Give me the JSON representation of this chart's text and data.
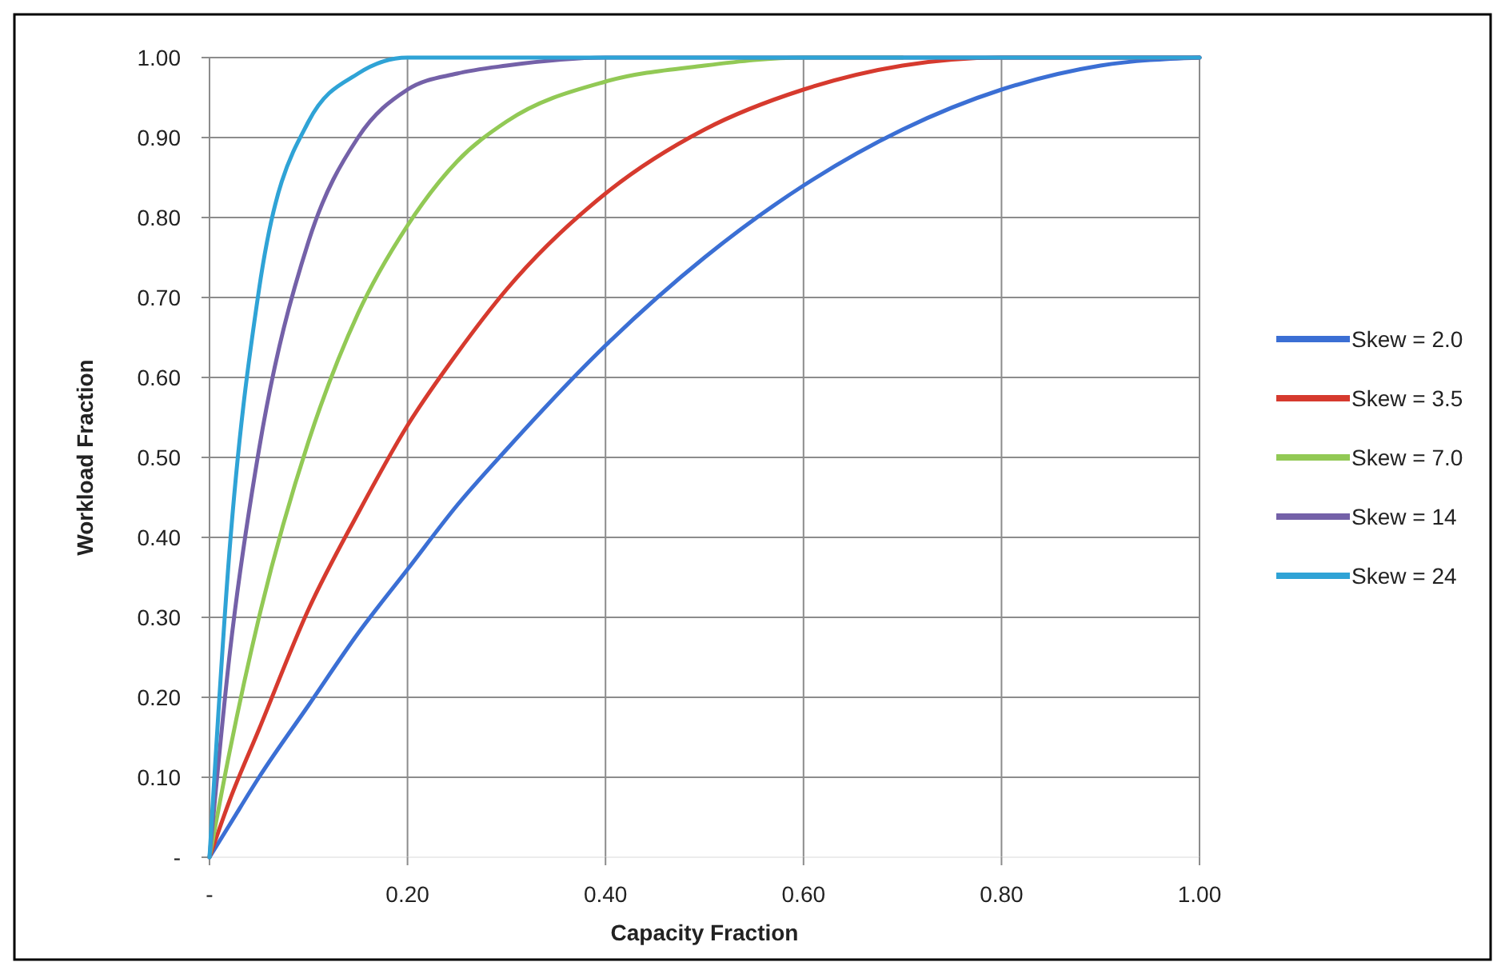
{
  "chart_data": {
    "type": "line",
    "xlabel": "Capacity Fraction",
    "ylabel": "Workload Fraction",
    "x": [
      0,
      0.02,
      0.05,
      0.1,
      0.15,
      0.2,
      0.25,
      0.3,
      0.4,
      0.5,
      0.6,
      0.7,
      0.8,
      0.9,
      1.0
    ],
    "series": [
      {
        "name": "Skew = 2.0",
        "color": "#3b6fd4",
        "values": [
          0,
          0.04,
          0.1,
          0.19,
          0.28,
          0.36,
          0.44,
          0.51,
          0.64,
          0.75,
          0.84,
          0.91,
          0.96,
          0.99,
          1.0
        ]
      },
      {
        "name": "Skew = 3.5",
        "color": "#d63a2e",
        "values": [
          0,
          0.07,
          0.16,
          0.31,
          0.43,
          0.54,
          0.63,
          0.71,
          0.83,
          0.91,
          0.96,
          0.99,
          1.0,
          1.0,
          1.0
        ]
      },
      {
        "name": "Skew = 7.0",
        "color": "#92c955",
        "values": [
          0,
          0.13,
          0.3,
          0.52,
          0.68,
          0.79,
          0.87,
          0.92,
          0.97,
          0.99,
          1.0,
          1.0,
          null,
          null,
          null
        ]
      },
      {
        "name": "Skew = 14",
        "color": "#7461a8",
        "values": [
          0,
          0.25,
          0.51,
          0.77,
          0.9,
          0.96,
          0.98,
          0.99,
          1.0,
          1.0,
          1.0,
          1.0,
          1.0,
          1.0,
          1.0
        ]
      },
      {
        "name": "Skew = 24",
        "color": "#2fa3d6",
        "values": [
          0,
          0.38,
          0.71,
          0.92,
          0.98,
          1.0,
          1.0,
          1.0,
          1.0,
          1.0,
          1.0,
          1.0,
          1.0,
          1.0,
          1.0
        ]
      }
    ],
    "xlim": [
      0,
      1
    ],
    "xticks": [
      {
        "value": 0,
        "label": "-"
      },
      {
        "value": 0.2,
        "label": "0.20"
      },
      {
        "value": 0.4,
        "label": "0.40"
      },
      {
        "value": 0.6,
        "label": "0.60"
      },
      {
        "value": 0.8,
        "label": "0.80"
      },
      {
        "value": 1,
        "label": "1.00"
      }
    ],
    "ylim": [
      0,
      1
    ],
    "yticks": [
      {
        "value": 0,
        "label": "-"
      },
      {
        "value": 0.1,
        "label": "0.10"
      },
      {
        "value": 0.2,
        "label": "0.20"
      },
      {
        "value": 0.3,
        "label": "0.30"
      },
      {
        "value": 0.4,
        "label": "0.40"
      },
      {
        "value": 0.5,
        "label": "0.50"
      },
      {
        "value": 0.6,
        "label": "0.60"
      },
      {
        "value": 0.7,
        "label": "0.70"
      },
      {
        "value": 0.8,
        "label": "0.80"
      },
      {
        "value": 0.9,
        "label": "0.90"
      },
      {
        "value": 1,
        "label": "1.00"
      }
    ],
    "grid": true,
    "legend": "right",
    "marker": "none",
    "line_style": "solid"
  }
}
